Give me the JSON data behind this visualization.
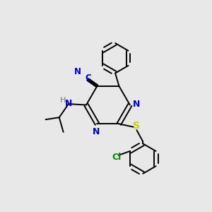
{
  "background_color": "#e8e8e8",
  "bond_color": "#000000",
  "n_color": "#0000cc",
  "s_color": "#cccc00",
  "cl_color": "#008800",
  "h_color": "#7a7a7a",
  "figsize": [
    3.0,
    3.0
  ],
  "dpi": 100,
  "lw": 1.4,
  "ring_r": 0.72,
  "xlim": [
    0,
    10
  ],
  "ylim": [
    0,
    10
  ]
}
